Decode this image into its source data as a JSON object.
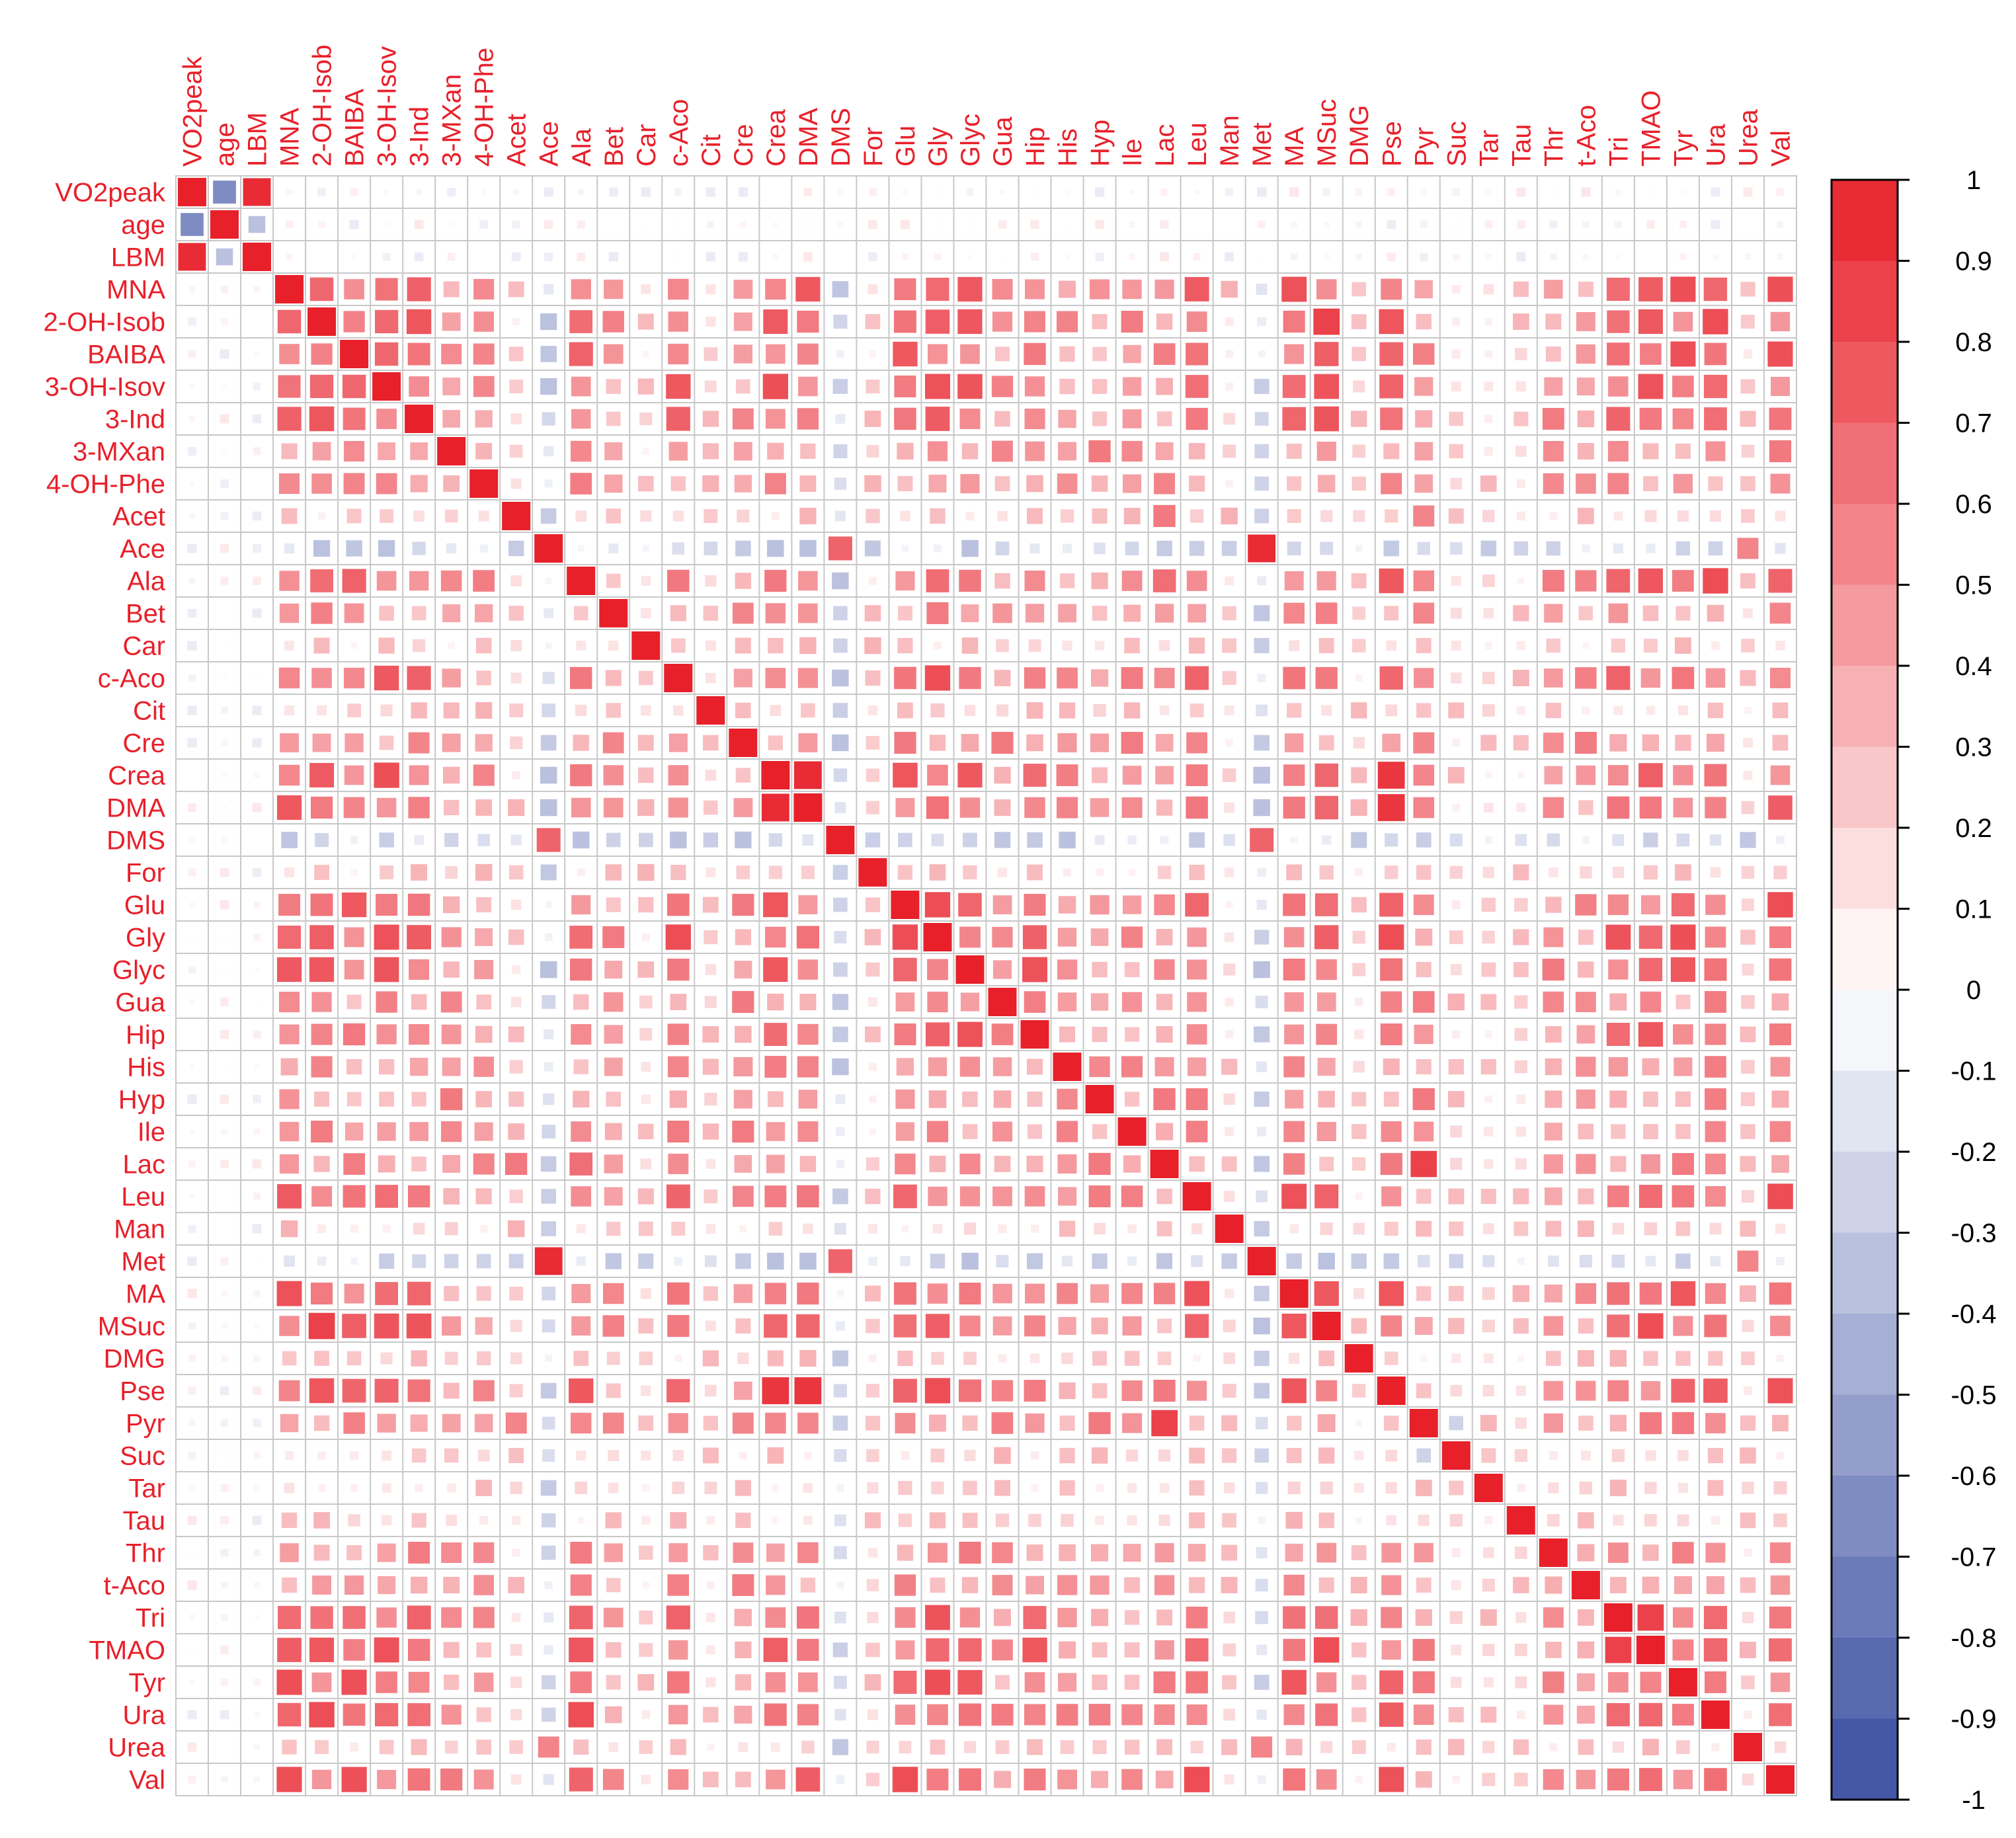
{
  "chart_data": {
    "type": "heatmap",
    "title": "",
    "xlabel": "",
    "ylabel": "",
    "variables": [
      "VO2peak",
      "age",
      "LBM",
      "MNA",
      "2-OH-Isob",
      "BAIBA",
      "3-OH-Isov",
      "3-Ind",
      "3-MXan",
      "4-OH-Phe",
      "Acet",
      "Ace",
      "Ala",
      "Bet",
      "Car",
      "c-Aco",
      "Cit",
      "Cre",
      "Crea",
      "DMA",
      "DMS",
      "For",
      "Glu",
      "Gly",
      "Glyc",
      "Gua",
      "Hip",
      "His",
      "Hyp",
      "Ile",
      "Lac",
      "Leu",
      "Man",
      "Met",
      "MA",
      "MSuc",
      "DMG",
      "Pse",
      "Pyr",
      "Suc",
      "Tar",
      "Tau",
      "Thr",
      "t-Aco",
      "Tri",
      "TMAO",
      "Tyr",
      "Ura",
      "Urea",
      "Val"
    ],
    "correlations_note": "",
    "colorbar": {
      "ticks": [
        "1",
        "0.9",
        "0.8",
        "0.7",
        "0.6",
        "0.5",
        "0.4",
        "0.3",
        "0.2",
        "0.1",
        "0",
        "-0.1",
        "-0.2",
        "-0.3",
        "-0.4",
        "-0.5",
        "-0.6",
        "-0.7",
        "-0.8",
        "-0.9",
        "-1"
      ],
      "range": [
        -1,
        1
      ]
    },
    "colors": {
      "positive": "#e8202a",
      "negative": "#3a4ea2",
      "neutral": "#ffffff",
      "label": "#e8202a",
      "grid": "#c8c8c8"
    },
    "pair_overrides": [
      [
        "VO2peak",
        "age",
        -0.65
      ],
      [
        "VO2peak",
        "LBM",
        0.95
      ],
      [
        "age",
        "LBM",
        -0.35
      ],
      [
        "Ace",
        "Met",
        0.95
      ],
      [
        "Ace",
        "DMS",
        0.7
      ],
      [
        "DMS",
        "Met",
        0.7
      ],
      [
        "Lac",
        "Pyr",
        0.85
      ],
      [
        "Acet",
        "Lac",
        0.6
      ],
      [
        "Acet",
        "Pyr",
        0.55
      ],
      [
        "Crea",
        "DMA",
        0.95
      ],
      [
        "Crea",
        "Pse",
        0.9
      ],
      [
        "DMA",
        "Pse",
        0.9
      ],
      [
        "Ace",
        "Crea",
        -0.35
      ],
      [
        "Ace",
        "DMA",
        -0.35
      ],
      [
        "Met",
        "Crea",
        -0.35
      ],
      [
        "Met",
        "DMA",
        -0.35
      ],
      [
        "Ace",
        "Glyc",
        -0.35
      ],
      [
        "Met",
        "Glyc",
        -0.35
      ],
      [
        "Ace",
        "Cre",
        -0.3
      ],
      [
        "Met",
        "Cre",
        -0.3
      ],
      [
        "Ace",
        "Pse",
        -0.3
      ],
      [
        "Met",
        "Pse",
        -0.3
      ],
      [
        "Ace",
        "Urea",
        0.55
      ],
      [
        "Met",
        "Urea",
        0.55
      ],
      [
        "Hyp",
        "Pyr",
        0.6
      ],
      [
        "Hyp",
        "Lac",
        0.6
      ],
      [
        "Leu",
        "Val",
        0.8
      ],
      [
        "Ala",
        "Val",
        0.7
      ],
      [
        "Ala",
        "Lac",
        0.65
      ],
      [
        "MSuc",
        "2-OH-Isob",
        0.85
      ],
      [
        "Tri",
        "TMAO",
        0.85
      ],
      [
        "Hip",
        "TMAO",
        0.75
      ],
      [
        "3-Ind",
        "Tri",
        0.7
      ],
      [
        "Pyr",
        "Suc",
        -0.25
      ]
    ]
  }
}
